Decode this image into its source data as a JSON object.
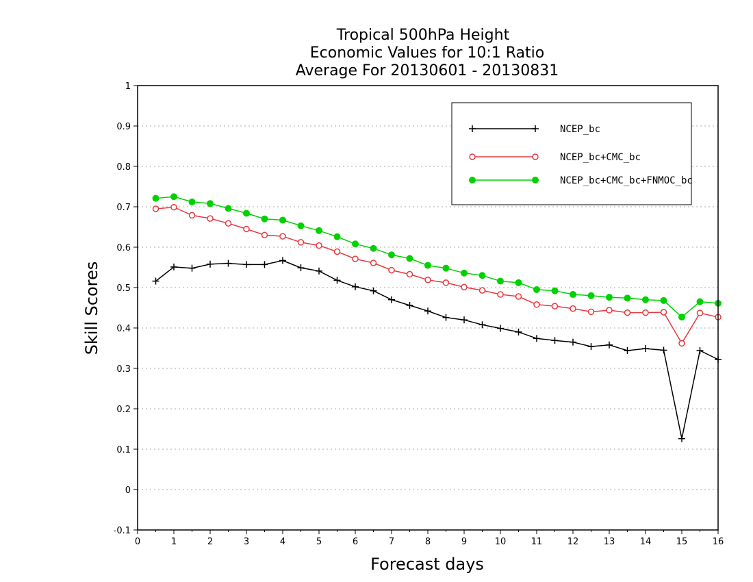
{
  "chart_data": {
    "type": "line",
    "title": [
      "Tropical 500hPa Height",
      "Economic Values for 10:1 Ratio",
      "Average For 20130601 - 20130831"
    ],
    "xlabel": "Forecast days",
    "ylabel": "Skill Scores",
    "xlim": [
      0,
      16
    ],
    "ylim": [
      -0.1,
      1
    ],
    "x_ticks": [
      "0",
      "1",
      "2",
      "3",
      "4",
      "5",
      "6",
      "7",
      "8",
      "9",
      "10",
      "11",
      "12",
      "13",
      "14",
      "15",
      "16"
    ],
    "y_ticks": [
      "-0.1",
      "0",
      "0.1",
      "0.2",
      "0.3",
      "0.4",
      "0.5",
      "0.6",
      "0.7",
      "0.8",
      "0.9",
      "1"
    ],
    "grid": true,
    "legend_position": "top-right",
    "x": [
      0.5,
      1,
      1.5,
      2,
      2.5,
      3,
      3.5,
      4,
      4.5,
      5,
      5.5,
      6,
      6.5,
      7,
      7.5,
      8,
      8.5,
      9,
      9.5,
      10,
      10.5,
      11,
      11.5,
      12,
      12.5,
      13,
      13.5,
      14,
      14.5,
      15,
      15.5,
      16
    ],
    "series": [
      {
        "name": "NCEP_bc",
        "color": "#000000",
        "marker": "plus",
        "values": [
          0.516,
          0.551,
          0.548,
          0.558,
          0.56,
          0.557,
          0.557,
          0.567,
          0.549,
          0.541,
          0.518,
          0.502,
          0.492,
          0.47,
          0.456,
          0.442,
          0.426,
          0.42,
          0.408,
          0.399,
          0.39,
          0.374,
          0.369,
          0.365,
          0.354,
          0.358,
          0.344,
          0.349,
          0.345,
          0.126,
          0.344,
          0.322
        ]
      },
      {
        "name": "NCEP_bc+CMC_bc",
        "color": "#e8383d",
        "marker": "open-circle",
        "values": [
          0.695,
          0.699,
          0.679,
          0.671,
          0.659,
          0.645,
          0.63,
          0.627,
          0.612,
          0.604,
          0.589,
          0.571,
          0.561,
          0.543,
          0.533,
          0.519,
          0.512,
          0.501,
          0.493,
          0.483,
          0.478,
          0.458,
          0.454,
          0.448,
          0.44,
          0.444,
          0.438,
          0.438,
          0.439,
          0.362,
          0.437,
          0.427
        ]
      },
      {
        "name": "NCEP_bc+CMC_bc+FNMOC_bc",
        "color": "#00d200",
        "marker": "filled-circle",
        "values": [
          0.721,
          0.725,
          0.712,
          0.708,
          0.696,
          0.684,
          0.67,
          0.667,
          0.653,
          0.641,
          0.626,
          0.608,
          0.597,
          0.581,
          0.572,
          0.555,
          0.548,
          0.536,
          0.53,
          0.516,
          0.512,
          0.495,
          0.492,
          0.483,
          0.48,
          0.476,
          0.474,
          0.47,
          0.468,
          0.427,
          0.465,
          0.461
        ]
      }
    ]
  }
}
